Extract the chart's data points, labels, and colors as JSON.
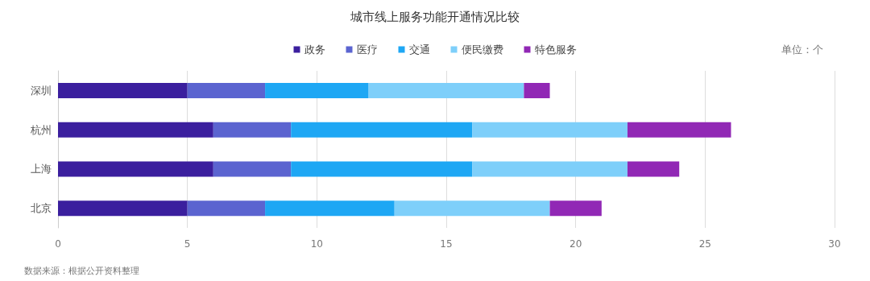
{
  "chart_data": {
    "type": "bar",
    "orientation": "horizontal",
    "stacked": true,
    "title": "城市线上服务功能开通情况比较",
    "categories": [
      "深圳",
      "杭州",
      "上海",
      "北京"
    ],
    "series": [
      {
        "name": "政务",
        "color": "#3b1f9e",
        "values": [
          5,
          6,
          6,
          5
        ]
      },
      {
        "name": "医疗",
        "color": "#5b64d0",
        "values": [
          3,
          3,
          3,
          3
        ]
      },
      {
        "name": "交通",
        "color": "#1ea7f4",
        "values": [
          4,
          7,
          7,
          5
        ]
      },
      {
        "name": "便民缴费",
        "color": "#7ecffa",
        "values": [
          6,
          6,
          6,
          6
        ]
      },
      {
        "name": "特色服务",
        "color": "#9128b5",
        "values": [
          1,
          4,
          2,
          2
        ]
      }
    ],
    "xlim": [
      0,
      30
    ],
    "xticks": [
      0,
      5,
      10,
      15,
      20,
      25,
      30
    ],
    "grid": "x",
    "legend": "top",
    "annotations": [
      "单位：个",
      "数据来源：根据公开资料整理"
    ]
  }
}
